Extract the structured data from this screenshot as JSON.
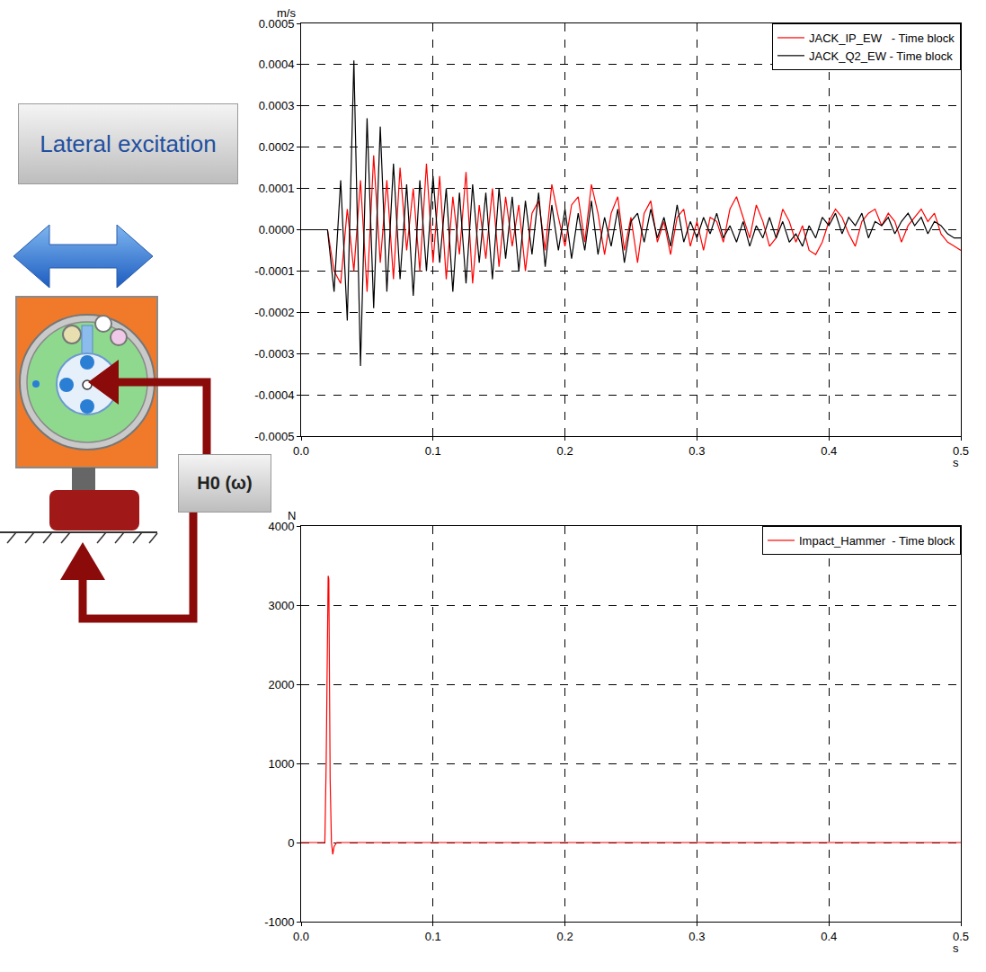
{
  "diagram": {
    "excitation_label": "Lateral excitation",
    "transfer_label": "H0 (ω)"
  },
  "chart_data": [
    {
      "type": "line",
      "x_label": "s",
      "y_label": "m/s",
      "x": [
        0,
        0.005,
        0.01,
        0.015,
        0.02,
        0.025,
        0.03,
        0.035,
        0.04,
        0.045,
        0.05,
        0.055,
        0.06,
        0.065,
        0.07,
        0.075,
        0.08,
        0.085,
        0.09,
        0.095,
        0.1,
        0.105,
        0.11,
        0.115,
        0.12,
        0.125,
        0.13,
        0.135,
        0.14,
        0.145,
        0.15,
        0.155,
        0.16,
        0.165,
        0.17,
        0.175,
        0.18,
        0.185,
        0.19,
        0.195,
        0.2,
        0.205,
        0.21,
        0.215,
        0.22,
        0.225,
        0.23,
        0.235,
        0.24,
        0.245,
        0.25,
        0.255,
        0.26,
        0.265,
        0.27,
        0.275,
        0.28,
        0.285,
        0.29,
        0.295,
        0.3,
        0.305,
        0.31,
        0.315,
        0.32,
        0.325,
        0.33,
        0.335,
        0.34,
        0.345,
        0.35,
        0.355,
        0.36,
        0.365,
        0.37,
        0.375,
        0.38,
        0.385,
        0.39,
        0.395,
        0.4,
        0.405,
        0.41,
        0.415,
        0.42,
        0.425,
        0.43,
        0.435,
        0.44,
        0.445,
        0.45,
        0.455,
        0.46,
        0.465,
        0.47,
        0.475,
        0.48,
        0.485,
        0.49,
        0.495,
        0.5
      ],
      "series": [
        {
          "name": "JACK_IP_EW   - Time block",
          "color": "#ff0000",
          "values": [
            0,
            0,
            0,
            0,
            0,
            -0.0001,
            -0.00013,
            5e-05,
            -0.0001,
            0.00012,
            -0.00015,
            0.00018,
            -8e-05,
            0.00012,
            -0.00012,
            0.00015,
            -5e-05,
            0.0001,
            -0.0001,
            0.00016,
            -8e-05,
            0.00013,
            -0.00012,
            8e-05,
            -6e-05,
            0.00014,
            -0.00013,
            6e-05,
            -7e-05,
            0.0001,
            -9e-05,
            8e-05,
            -4e-05,
            6e-05,
            -0.0001,
            4e-05,
            7e-05,
            -5e-05,
            0.00011,
            3e-05,
            -4e-05,
            6e-05,
            8e-05,
            -3e-05,
            0.00011,
            4e-05,
            -6e-05,
            4e-05,
            8e-05,
            -5e-05,
            3e-05,
            -8e-05,
            4e-05,
            7e-05,
            -3e-05,
            2e-05,
            -6e-05,
            3e-05,
            5e-05,
            -4e-05,
            2e-05,
            -5e-05,
            3e-05,
            2e-05,
            -3e-05,
            5e-05,
            8e-05,
            3e-05,
            -2e-05,
            6e-05,
            2e-05,
            -4e-05,
            -2e-05,
            5e-05,
            2e-05,
            -3e-05,
            1e-05,
            -5e-05,
            -6e-05,
            -3e-05,
            2e-05,
            5e-05,
            3e-05,
            -1e-05,
            -4e-05,
            2e-05,
            4e-05,
            5e-05,
            1e-05,
            4e-05,
            2e-05,
            -3e-05,
            1e-05,
            3e-05,
            5e-05,
            2e-05,
            4e-05,
            -1e-05,
            -3e-05,
            -4e-05,
            -5e-05
          ]
        },
        {
          "name": "JACK_Q2_EW - Time block",
          "color": "#000000",
          "values": [
            0,
            0,
            0,
            0,
            0,
            -0.00015,
            0.00012,
            -0.00022,
            0.00041,
            -0.00033,
            0.00027,
            -0.00019,
            0.00025,
            -0.00015,
            0.00016,
            -0.00012,
            0.00011,
            -0.00016,
            0.00012,
            -0.0001,
            0.00013,
            -8e-05,
            0.0001,
            -0.00015,
            9e-05,
            -0.00013,
            0.00011,
            -8e-05,
            9e-05,
            -0.00012,
            0.0001,
            -7e-05,
            8e-05,
            -0.0001,
            7e-05,
            -6e-05,
            9e-05,
            -9e-05,
            6e-05,
            -5e-05,
            5e-05,
            -7e-05,
            4e-05,
            -5e-05,
            7e-05,
            -6e-05,
            3e-05,
            -4e-05,
            5e-05,
            -8e-05,
            2e-05,
            4e-05,
            -3e-05,
            5e-05,
            -2e-05,
            3e-05,
            -4e-05,
            6e-05,
            -3e-05,
            2e-05,
            -2e-05,
            3e-05,
            -1e-05,
            4e-05,
            -2e-05,
            1e-05,
            -3e-05,
            2e-05,
            -4e-05,
            1e-05,
            -2e-05,
            3e-05,
            -2e-05,
            2e-05,
            -3e-05,
            -1e-05,
            -4e-05,
            1e-05,
            -2e-05,
            3e-05,
            1e-05,
            4e-05,
            -1e-05,
            3e-05,
            1e-05,
            4e-05,
            -2e-05,
            2e-05,
            1e-05,
            3e-05,
            -1e-05,
            2e-05,
            4e-05,
            1e-05,
            3e-05,
            -1e-05,
            2e-05,
            1e-05,
            -1e-05,
            -2e-05,
            -2e-05
          ]
        }
      ],
      "xlim": [
        0,
        0.5
      ],
      "xticks": [
        {
          "value": 0,
          "label": "0.0"
        },
        0.1,
        0.2,
        0.3,
        0.4,
        0.5
      ],
      "ylim": [
        -0.0005,
        0.0005
      ],
      "yticks": [
        -0.0005,
        -0.0004,
        -0.0003,
        -0.0002,
        -0.0001,
        {
          "value": 0,
          "label": "0.0000"
        },
        0.0001,
        0.0002,
        0.0003,
        0.0004,
        0.0005
      ],
      "grid": true,
      "legend": "top right"
    },
    {
      "type": "line",
      "x_label": "s",
      "y_label": "N",
      "x": [
        0,
        0.018,
        0.019,
        0.0205,
        0.021,
        0.0215,
        0.022,
        0.023,
        0.024,
        0.025,
        0.027,
        0.5
      ],
      "series": [
        {
          "name": "Impact_Hammer  - Time block",
          "color": "#ff0000",
          "values": [
            0,
            0,
            1000,
            3370,
            3330,
            1000,
            800,
            0,
            -150,
            -50,
            0,
            0
          ]
        }
      ],
      "xlim": [
        0,
        0.5
      ],
      "xticks": [
        {
          "value": 0,
          "label": "0.0"
        },
        0.1,
        0.2,
        0.3,
        0.4,
        0.5
      ],
      "ylim": [
        -1000,
        4000
      ],
      "yticks": [
        -1000,
        0,
        1000,
        2000,
        3000,
        4000
      ],
      "grid": true,
      "legend": "top right"
    }
  ]
}
